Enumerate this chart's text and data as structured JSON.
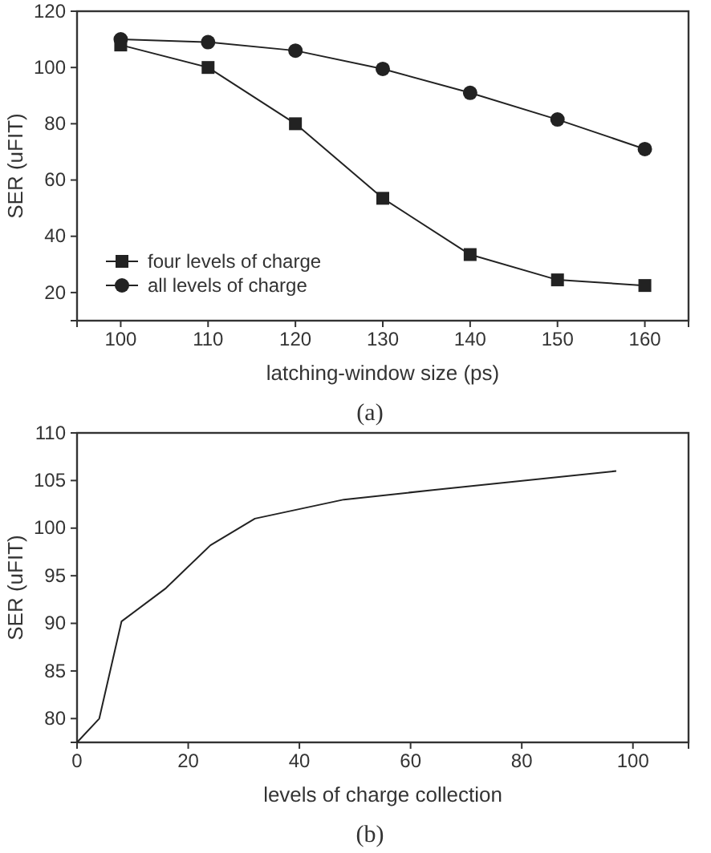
{
  "chart_data": [
    {
      "type": "line",
      "title": "(a)",
      "xlabel": "latching-window size (ps)",
      "ylabel": "SER (uFIT)",
      "x": [
        100,
        110,
        120,
        130,
        140,
        150,
        160
      ],
      "xlim": [
        95,
        165
      ],
      "ylim": [
        10,
        120
      ],
      "xticks": [
        100,
        110,
        120,
        130,
        140,
        150,
        160
      ],
      "yticks": [
        20,
        40,
        60,
        80,
        100,
        120
      ],
      "legend": "bottom left",
      "grid": false,
      "series": [
        {
          "name": "four levels of charge",
          "color": "#222222",
          "marker": "square",
          "values": [
            108,
            100,
            80,
            53.5,
            33.5,
            24.5,
            22.5
          ]
        },
        {
          "name": "all levels of charge",
          "color": "#222222",
          "marker": "circle",
          "values": [
            110,
            109,
            106,
            99.5,
            91,
            81.5,
            71
          ]
        }
      ]
    },
    {
      "type": "line",
      "title": "(b)",
      "xlabel": "levels of charge collection",
      "ylabel": "SER (uFIT)",
      "xlim": [
        0,
        110
      ],
      "ylim": [
        77.5,
        110
      ],
      "xticks": [
        0,
        20,
        40,
        60,
        80,
        100
      ],
      "yticks": [
        80,
        85,
        90,
        95,
        100,
        105,
        110
      ],
      "legend": false,
      "grid": false,
      "series": [
        {
          "color": "#222222",
          "marker": "none",
          "x": [
            0,
            4,
            8,
            16,
            24,
            32,
            48,
            64,
            97
          ],
          "values": [
            77.5,
            80,
            90.2,
            93.7,
            98.2,
            101,
            103,
            104,
            106
          ]
        }
      ]
    }
  ]
}
